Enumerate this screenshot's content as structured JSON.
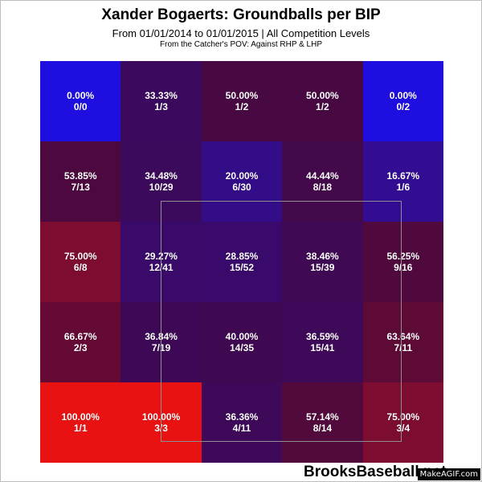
{
  "title": "Xander Bogaerts: Groundballs per BIP",
  "subtitle": "From 01/01/2014 to 01/01/2015 | All Competition Levels",
  "subsubtitle": "From the Catcher's POV:  Against RHP & LHP",
  "brand": "BrooksBaseball.net",
  "watermark": "MakeAGIF.com",
  "colors": {
    "low": "#1e0fe0",
    "high": "#e81212"
  },
  "chart_data": {
    "type": "heatmap",
    "rows": 5,
    "cols": 5,
    "strike_zone": "inner 3x3",
    "cells": [
      [
        {
          "pct": "0.00%",
          "frac": "0/0",
          "value": 0
        },
        {
          "pct": "33.33%",
          "frac": "1/3",
          "value": 33.33
        },
        {
          "pct": "50.00%",
          "frac": "1/2",
          "value": 50.0
        },
        {
          "pct": "50.00%",
          "frac": "1/2",
          "value": 50.0
        },
        {
          "pct": "0.00%",
          "frac": "0/2",
          "value": 0
        }
      ],
      [
        {
          "pct": "53.85%",
          "frac": "7/13",
          "value": 53.85
        },
        {
          "pct": "34.48%",
          "frac": "10/29",
          "value": 34.48
        },
        {
          "pct": "20.00%",
          "frac": "6/30",
          "value": 20.0
        },
        {
          "pct": "44.44%",
          "frac": "8/18",
          "value": 44.44
        },
        {
          "pct": "16.67%",
          "frac": "1/6",
          "value": 16.67
        }
      ],
      [
        {
          "pct": "75.00%",
          "frac": "6/8",
          "value": 75.0
        },
        {
          "pct": "29.27%",
          "frac": "12/41",
          "value": 29.27
        },
        {
          "pct": "28.85%",
          "frac": "15/52",
          "value": 28.85
        },
        {
          "pct": "38.46%",
          "frac": "15/39",
          "value": 38.46
        },
        {
          "pct": "56.25%",
          "frac": "9/16",
          "value": 56.25
        }
      ],
      [
        {
          "pct": "66.67%",
          "frac": "2/3",
          "value": 66.67
        },
        {
          "pct": "36.84%",
          "frac": "7/19",
          "value": 36.84
        },
        {
          "pct": "40.00%",
          "frac": "14/35",
          "value": 40.0
        },
        {
          "pct": "36.59%",
          "frac": "15/41",
          "value": 36.59
        },
        {
          "pct": "63.64%",
          "frac": "7/11",
          "value": 63.64
        }
      ],
      [
        {
          "pct": "100.00%",
          "frac": "1/1",
          "value": 100.0
        },
        {
          "pct": "100.00%",
          "frac": "3/3",
          "value": 100.0
        },
        {
          "pct": "36.36%",
          "frac": "4/11",
          "value": 36.36
        },
        {
          "pct": "57.14%",
          "frac": "8/14",
          "value": 57.14
        },
        {
          "pct": "75.00%",
          "frac": "3/4",
          "value": 75.0
        }
      ]
    ]
  }
}
